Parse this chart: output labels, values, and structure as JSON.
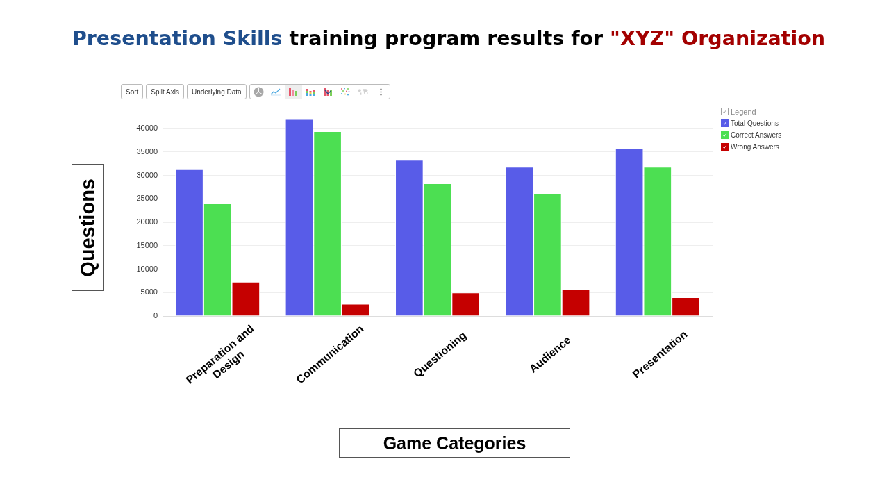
{
  "chart_data": {
    "type": "bar",
    "title": "Presentation Skills training program results for \"XYZ\" Organization",
    "xlabel": "Game Categories",
    "ylabel": "Questions",
    "legend_title": "Legend",
    "annotations": [
      "Sort",
      "Split Axis",
      "Underlying Data"
    ],
    "categories": [
      "Preparation and Design",
      "Communication",
      "Questioning",
      "Audience",
      "Presentation"
    ],
    "series": [
      {
        "name": "Total Questions",
        "color": "#585ce8",
        "values": [
          31300,
          42000,
          33300,
          31800,
          35700
        ]
      },
      {
        "name": "Correct Answers",
        "color": "#4cdf52",
        "values": [
          24000,
          39400,
          28300,
          26200,
          31800
        ]
      },
      {
        "name": "Wrong Answers",
        "color": "#c50000",
        "values": [
          7300,
          2600,
          5000,
          5700,
          4000
        ]
      }
    ],
    "ylim": [
      0,
      44000
    ],
    "yticks": [
      0,
      5000,
      10000,
      15000,
      20000,
      25000,
      30000,
      35000,
      40000
    ],
    "grid": "y",
    "legend": "top right"
  }
}
